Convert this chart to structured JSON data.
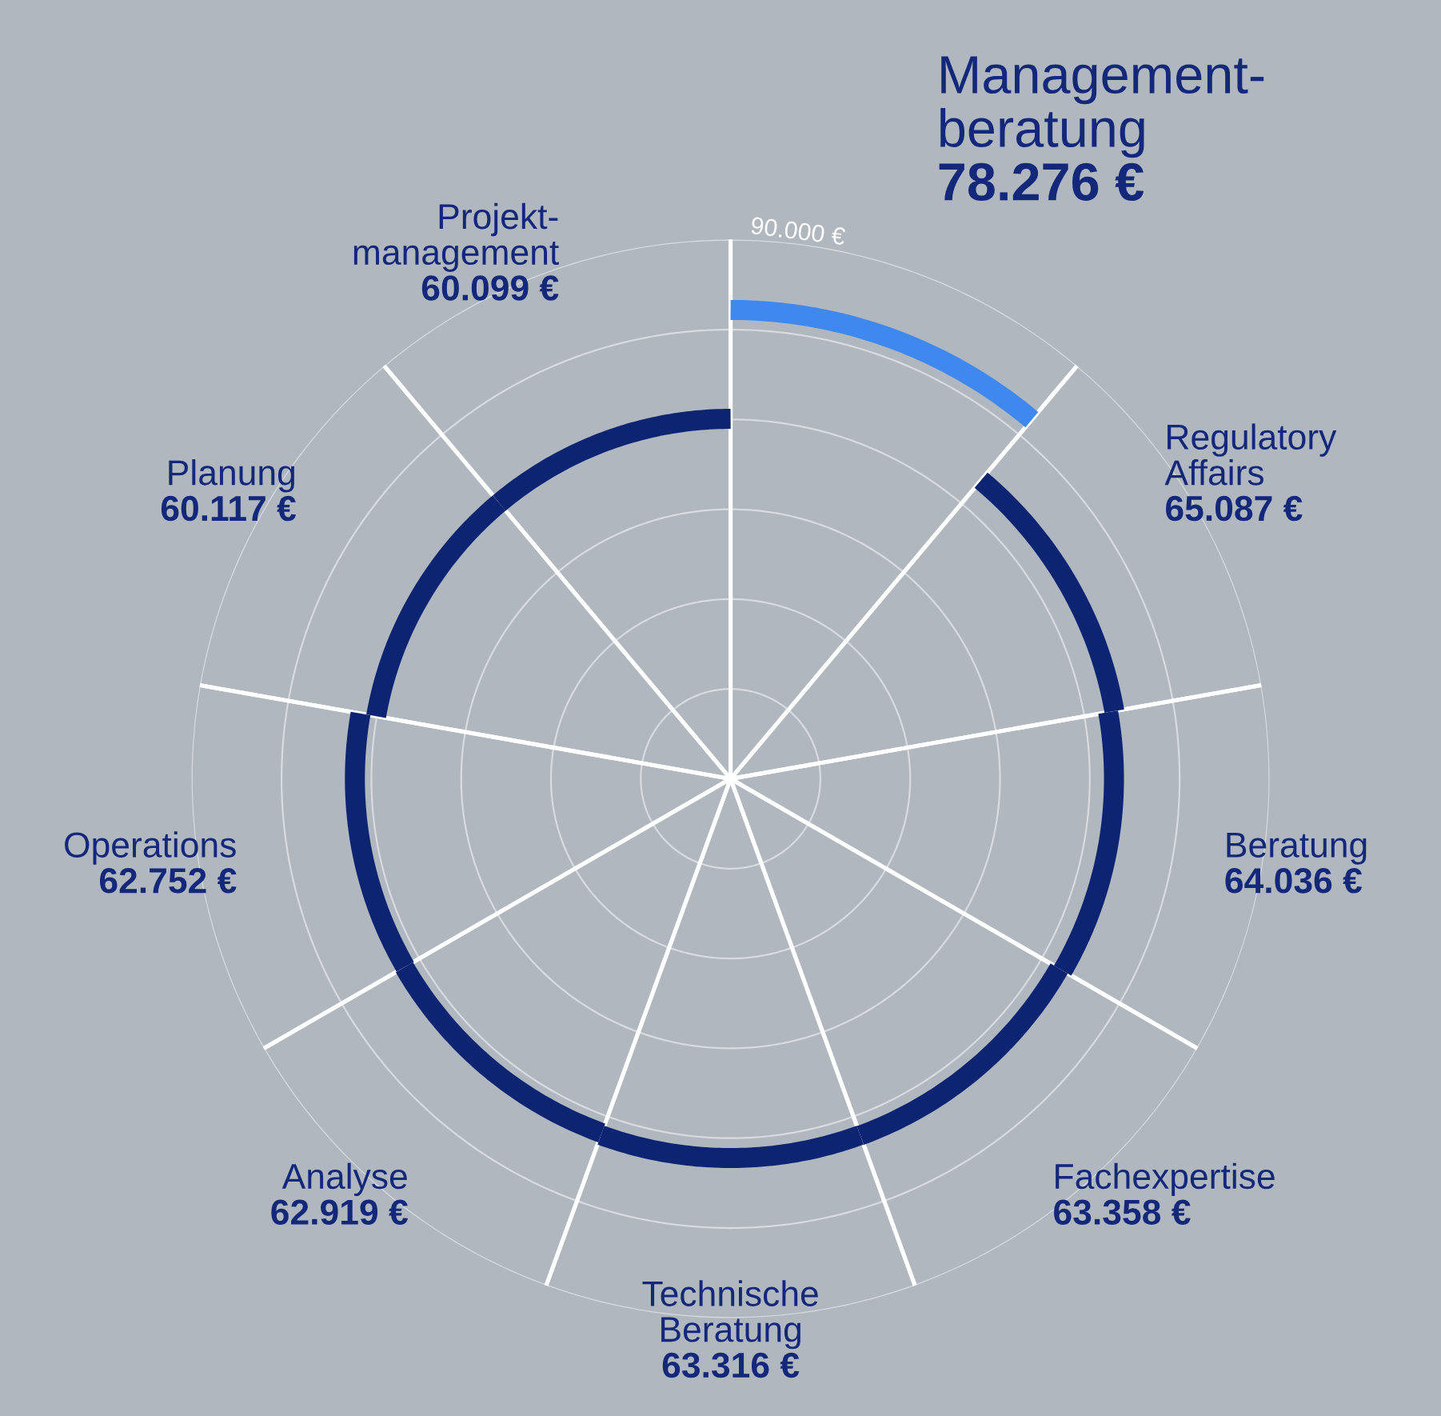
{
  "chart_data": {
    "type": "other",
    "categories": [
      "Management-\nberatung",
      "Regulatory\nAffairs",
      "Beratung",
      "Fachexpertise",
      "Technische\nBeratung",
      "Analyse",
      "Operations",
      "Planung",
      "Projekt-\nmanagement"
    ],
    "series": [
      {
        "values": [
          78276,
          65087,
          64036,
          63358,
          63316,
          62919,
          62752,
          60117,
          60099
        ],
        "colors": [
          "#3f88f0",
          "#0d2472",
          "#0d2472",
          "#0d2472",
          "#0d2472",
          "#0d2472",
          "#0d2472",
          "#0d2472",
          "#0d2472"
        ],
        "value_labels": [
          "78.276 €",
          "65.087 €",
          "64.036 €",
          "63.358 €",
          "63.316 €",
          "62.919 €",
          "62.752 €",
          "60.117 €",
          "60.099 €"
        ]
      }
    ],
    "annotations": [
      "90.000 €"
    ]
  }
}
